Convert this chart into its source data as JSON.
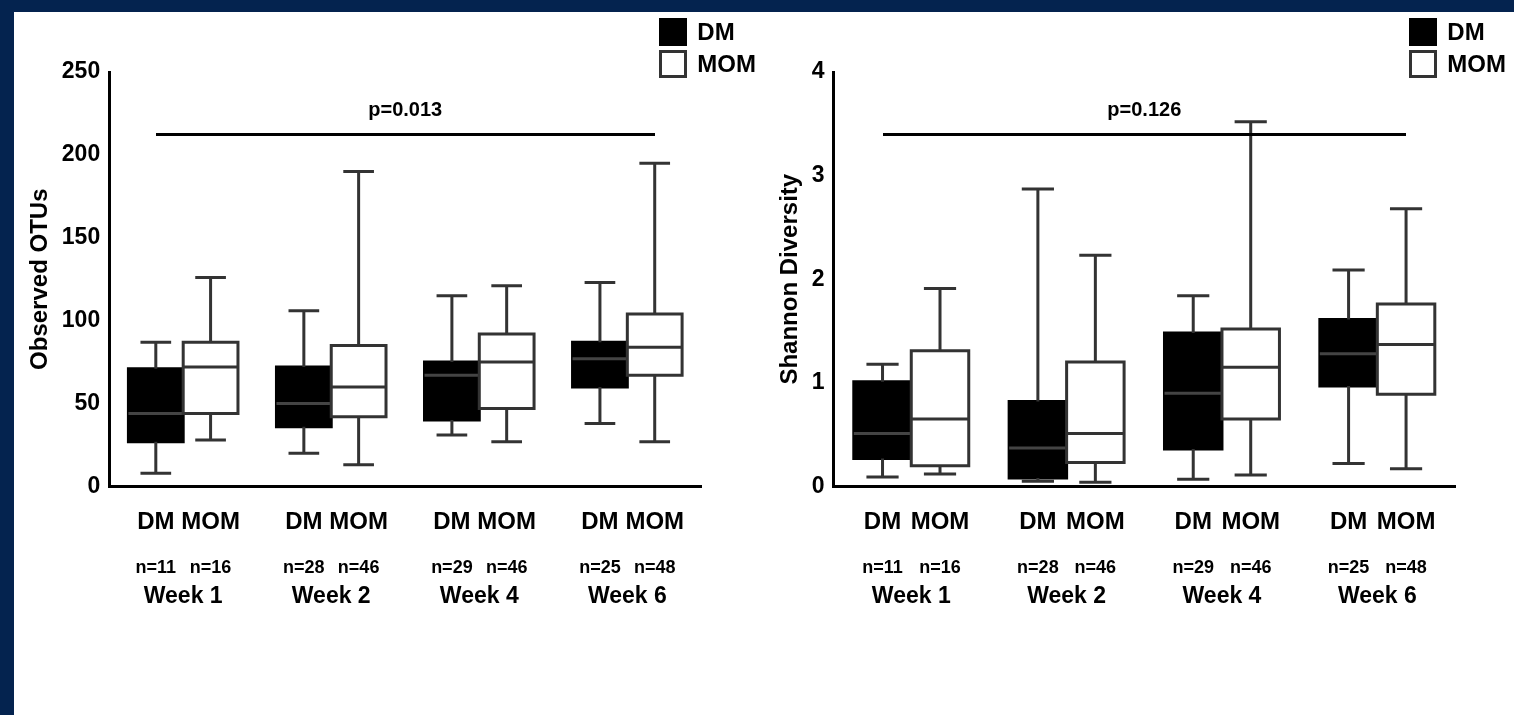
{
  "chart_data": [
    {
      "type": "box",
      "ylabel": "Observed OTUs",
      "categories": [
        "Week 1",
        "Week 2",
        "Week 4",
        "Week 6"
      ],
      "ylim": [
        0,
        250
      ],
      "yticks": [
        0,
        50,
        100,
        150,
        200,
        250
      ],
      "grid": false,
      "legend": "top right",
      "annotations": [
        "p=0.013",
        "n=11",
        "n=16",
        "n=28",
        "n=46",
        "n=29",
        "n=46",
        "n=25",
        "n=48"
      ],
      "series": [
        {
          "name": "DM",
          "color": "#000000",
          "boxes": [
            {
              "low": 8,
              "q1": 27,
              "median": 44,
              "q3": 71,
              "high": 87
            },
            {
              "low": 20,
              "q1": 36,
              "median": 50,
              "q3": 72,
              "high": 106
            },
            {
              "low": 31,
              "q1": 40,
              "median": 67,
              "q3": 75,
              "high": 115
            },
            {
              "low": 38,
              "q1": 60,
              "median": 77,
              "q3": 87,
              "high": 123
            }
          ]
        },
        {
          "name": "MOM",
          "color": "#ffffff",
          "boxes": [
            {
              "low": 28,
              "q1": 44,
              "median": 72,
              "q3": 87,
              "high": 126
            },
            {
              "low": 13,
              "q1": 42,
              "median": 60,
              "q3": 85,
              "high": 190
            },
            {
              "low": 27,
              "q1": 47,
              "median": 75,
              "q3": 92,
              "high": 121
            },
            {
              "low": 27,
              "q1": 67,
              "median": 84,
              "q3": 104,
              "high": 195
            }
          ]
        }
      ]
    },
    {
      "type": "box",
      "ylabel": "Shannon Diversity",
      "categories": [
        "Week 1",
        "Week 2",
        "Week 4",
        "Week 6"
      ],
      "ylim": [
        0,
        4
      ],
      "yticks": [
        0,
        1,
        2,
        3,
        4
      ],
      "grid": false,
      "legend": "top right",
      "annotations": [
        "p=0.126",
        "n=11",
        "n=16",
        "n=28",
        "n=46",
        "n=29",
        "n=46",
        "n=25",
        "n=48"
      ],
      "series": [
        {
          "name": "DM",
          "color": "#000000",
          "boxes": [
            {
              "low": 0.09,
              "q1": 0.27,
              "median": 0.51,
              "q3": 1.01,
              "high": 1.18
            },
            {
              "low": 0.05,
              "q1": 0.08,
              "median": 0.37,
              "q3": 0.82,
              "high": 2.87
            },
            {
              "low": 0.07,
              "q1": 0.36,
              "median": 0.9,
              "q3": 1.48,
              "high": 1.84
            },
            {
              "low": 0.22,
              "q1": 0.97,
              "median": 1.28,
              "q3": 1.61,
              "high": 2.09
            }
          ]
        },
        {
          "name": "MOM",
          "color": "#ffffff",
          "boxes": [
            {
              "low": 0.12,
              "q1": 0.2,
              "median": 0.65,
              "q3": 1.31,
              "high": 1.91
            },
            {
              "low": 0.04,
              "q1": 0.23,
              "median": 0.51,
              "q3": 1.2,
              "high": 2.23
            },
            {
              "low": 0.11,
              "q1": 0.65,
              "median": 1.15,
              "q3": 1.52,
              "high": 3.52
            },
            {
              "low": 0.17,
              "q1": 0.89,
              "median": 1.37,
              "q3": 1.76,
              "high": 2.68
            }
          ]
        }
      ]
    }
  ]
}
